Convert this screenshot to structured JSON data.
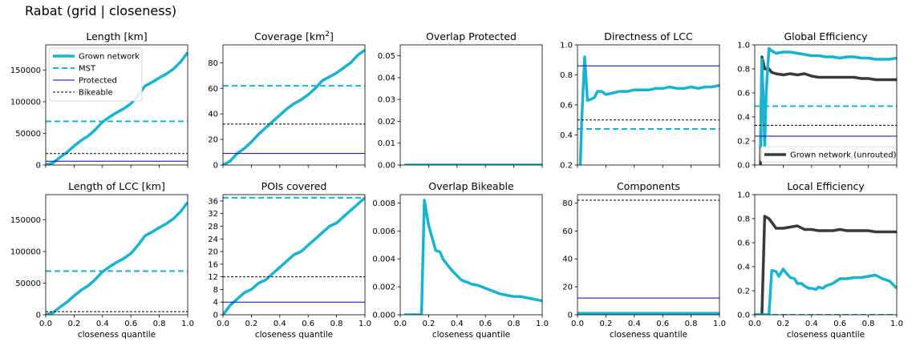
{
  "figure_title": "Rabat (grid | closeness)",
  "colors": {
    "grown": "#17b3cf",
    "mst": "#17b3cf",
    "protected": "#0000cc",
    "bikeable": "#000000",
    "unrouted": "#3a3a3a"
  },
  "chart_data": [
    {
      "type": "line",
      "title": "Length [km]",
      "title_sup": "",
      "xlabel": "",
      "xlim": [
        0,
        1
      ],
      "ylim": [
        0,
        190000
      ],
      "yticks": [
        0,
        50000,
        100000,
        150000
      ],
      "yticklabels": [
        "0",
        "50000",
        "100000",
        "150000"
      ],
      "xticks": [
        0,
        0.2,
        0.4,
        0.6,
        0.8,
        1.0
      ],
      "xticklabels": [],
      "legend": {
        "placement": "upper-left",
        "entries": [
          "Grown network",
          "MST",
          "Protected",
          "Bikeable"
        ]
      },
      "series": [
        {
          "name": "Grown network",
          "style": "grown",
          "x": [
            0,
            0.05,
            0.1,
            0.15,
            0.2,
            0.25,
            0.3,
            0.35,
            0.4,
            0.45,
            0.5,
            0.55,
            0.6,
            0.65,
            0.7,
            0.75,
            0.8,
            0.85,
            0.9,
            0.95,
            1.0
          ],
          "y": [
            0,
            3000,
            12000,
            20000,
            30000,
            39000,
            46000,
            56000,
            68000,
            76000,
            83000,
            89000,
            97000,
            110000,
            125000,
            131000,
            138000,
            144000,
            152000,
            163000,
            178000
          ]
        },
        {
          "name": "MST",
          "style": "mst",
          "hline": 69000
        },
        {
          "name": "Protected",
          "style": "protected",
          "hline": 6000
        },
        {
          "name": "Bikeable",
          "style": "bikeable",
          "hline": 18000
        }
      ]
    },
    {
      "type": "line",
      "title": "Coverage [km",
      "title_sup": "2",
      "title_end": "]",
      "xlabel": "",
      "xlim": [
        0,
        1
      ],
      "ylim": [
        0,
        94
      ],
      "yticks": [
        0,
        20,
        40,
        60,
        80
      ],
      "yticklabels": [
        "0",
        "20",
        "40",
        "60",
        "80"
      ],
      "xticks": [
        0,
        0.2,
        0.4,
        0.6,
        0.8,
        1.0
      ],
      "xticklabels": [],
      "series": [
        {
          "name": "Grown network",
          "style": "grown",
          "x": [
            0,
            0.05,
            0.1,
            0.15,
            0.2,
            0.25,
            0.3,
            0.35,
            0.4,
            0.45,
            0.5,
            0.55,
            0.6,
            0.65,
            0.7,
            0.75,
            0.8,
            0.85,
            0.9,
            0.95,
            1.0
          ],
          "y": [
            0,
            3,
            9,
            13,
            18,
            24,
            29,
            34,
            39,
            44,
            48,
            51,
            55,
            60,
            66,
            69,
            72,
            76,
            80,
            86,
            90
          ]
        },
        {
          "name": "MST",
          "style": "mst",
          "hline": 62
        },
        {
          "name": "Protected",
          "style": "protected",
          "hline": 9
        },
        {
          "name": "Bikeable",
          "style": "bikeable",
          "hline": 32
        }
      ]
    },
    {
      "type": "line",
      "title": "Overlap Protected",
      "xlabel": "",
      "xlim": [
        0,
        1
      ],
      "ylim": [
        0,
        0.055
      ],
      "yticks": [
        0,
        0.01,
        0.02,
        0.03,
        0.04,
        0.05
      ],
      "yticklabels": [
        "0.00",
        "0.01",
        "0.02",
        "0.03",
        "0.04",
        "0.05"
      ],
      "xticks": [
        0,
        0.2,
        0.4,
        0.6,
        0.8,
        1.0
      ],
      "xticklabels": [],
      "series": [
        {
          "name": "Grown network",
          "style": "grown",
          "x": [
            0.03,
            1.0
          ],
          "y": [
            0,
            0
          ]
        }
      ]
    },
    {
      "type": "line",
      "title": "Directness of LCC",
      "xlabel": "",
      "xlim": [
        0,
        1
      ],
      "ylim": [
        0.2,
        1.0
      ],
      "yticks": [
        0.2,
        0.4,
        0.6,
        0.8,
        1.0
      ],
      "yticklabels": [
        "0.2",
        "0.4",
        "0.6",
        "0.8",
        "1.0"
      ],
      "xticks": [
        0,
        0.2,
        0.4,
        0.6,
        0.8,
        1.0
      ],
      "xticklabels": [],
      "series": [
        {
          "name": "Grown network",
          "style": "grown",
          "x": [
            0.02,
            0.03,
            0.05,
            0.07,
            0.1,
            0.12,
            0.14,
            0.17,
            0.2,
            0.25,
            0.3,
            0.35,
            0.4,
            0.45,
            0.5,
            0.55,
            0.6,
            0.65,
            0.7,
            0.75,
            0.8,
            0.85,
            0.9,
            0.95,
            1.0
          ],
          "y": [
            0.2,
            0.5,
            0.92,
            0.63,
            0.64,
            0.65,
            0.69,
            0.69,
            0.67,
            0.68,
            0.69,
            0.69,
            0.7,
            0.7,
            0.7,
            0.71,
            0.71,
            0.72,
            0.71,
            0.71,
            0.72,
            0.71,
            0.72,
            0.72,
            0.73
          ]
        },
        {
          "name": "MST",
          "style": "mst",
          "hline": 0.44
        },
        {
          "name": "Protected",
          "style": "protected",
          "hline": 0.86
        },
        {
          "name": "Bikeable",
          "style": "bikeable",
          "hline": 0.5
        }
      ]
    },
    {
      "type": "line",
      "title": "Global Efficiency",
      "xlabel": "",
      "xlim": [
        0,
        1
      ],
      "ylim": [
        0,
        1.0
      ],
      "yticks": [
        0,
        0.2,
        0.4,
        0.6,
        0.8,
        1.0
      ],
      "yticklabels": [
        "0.0",
        "0.2",
        "0.4",
        "0.6",
        "0.8",
        "1.0"
      ],
      "xticks": [
        0,
        0.2,
        0.4,
        0.6,
        0.8,
        1.0
      ],
      "xticklabels": [],
      "legend": {
        "placement": "lower-right",
        "entries": [
          "Grown network (unrouted)"
        ]
      },
      "series": [
        {
          "name": "Grown network (unrouted)",
          "style": "unrouted",
          "x": [
            0.04,
            0.05,
            0.07,
            0.1,
            0.12,
            0.15,
            0.2,
            0.25,
            0.3,
            0.35,
            0.4,
            0.45,
            0.5,
            0.55,
            0.6,
            0.65,
            0.7,
            0.75,
            0.8,
            0.85,
            0.9,
            0.95,
            1.0
          ],
          "y": [
            0,
            0.9,
            0.8,
            0.8,
            0.77,
            0.76,
            0.75,
            0.76,
            0.75,
            0.76,
            0.74,
            0.73,
            0.73,
            0.73,
            0.73,
            0.73,
            0.73,
            0.72,
            0.72,
            0.71,
            0.71,
            0.71,
            0.71
          ]
        },
        {
          "name": "Grown network",
          "style": "grown",
          "x": [
            0.04,
            0.05,
            0.06,
            0.07,
            0.08,
            0.1,
            0.12,
            0.15,
            0.2,
            0.25,
            0.3,
            0.35,
            0.4,
            0.45,
            0.5,
            0.55,
            0.6,
            0.65,
            0.7,
            0.75,
            0.8,
            0.85,
            0.9,
            0.95,
            1.0
          ],
          "y": [
            0.15,
            0.88,
            0.55,
            0.15,
            0.6,
            0.97,
            0.95,
            0.93,
            0.94,
            0.94,
            0.93,
            0.92,
            0.91,
            0.91,
            0.9,
            0.9,
            0.89,
            0.9,
            0.9,
            0.89,
            0.89,
            0.88,
            0.88,
            0.88,
            0.89
          ]
        },
        {
          "name": "MST",
          "style": "mst",
          "hline": 0.49
        },
        {
          "name": "Protected",
          "style": "protected",
          "hline": 0.24
        },
        {
          "name": "Bikeable",
          "style": "bikeable",
          "hline": 0.33
        }
      ]
    },
    {
      "type": "line",
      "title": "Length of LCC [km]",
      "xlabel": "closeness quantile",
      "xlim": [
        0,
        1
      ],
      "ylim": [
        0,
        190000
      ],
      "yticks": [
        0,
        50000,
        100000,
        150000
      ],
      "yticklabels": [
        "0",
        "50000",
        "100000",
        "150000"
      ],
      "xticks": [
        0,
        0.2,
        0.4,
        0.6,
        0.8,
        1.0
      ],
      "xticklabels": [
        "0.0",
        "0.2",
        "0.4",
        "0.6",
        "0.8",
        "1.0"
      ],
      "series": [
        {
          "name": "Grown network",
          "style": "grown",
          "x": [
            0,
            0.05,
            0.1,
            0.15,
            0.2,
            0.25,
            0.3,
            0.35,
            0.4,
            0.45,
            0.5,
            0.55,
            0.6,
            0.65,
            0.7,
            0.75,
            0.8,
            0.85,
            0.9,
            0.95,
            1.0
          ],
          "y": [
            0,
            3000,
            12000,
            20000,
            30000,
            39000,
            46000,
            56000,
            68000,
            76000,
            83000,
            89000,
            97000,
            110000,
            125000,
            131000,
            138000,
            144000,
            152000,
            163000,
            178000
          ]
        },
        {
          "name": "MST",
          "style": "mst",
          "hline": 69000
        },
        {
          "name": "Bikeable",
          "style": "bikeable",
          "hline": 5000
        }
      ]
    },
    {
      "type": "line",
      "title": "POIs covered",
      "xlabel": "closeness quantile",
      "xlim": [
        0,
        1
      ],
      "ylim": [
        0,
        38
      ],
      "yticks": [
        0,
        4,
        8,
        12,
        16,
        20,
        24,
        28,
        32,
        36
      ],
      "yticklabels": [
        "0",
        "4",
        "8",
        "12",
        "16",
        "20",
        "24",
        "28",
        "32",
        "36"
      ],
      "xticks": [
        0,
        0.2,
        0.4,
        0.6,
        0.8,
        1.0
      ],
      "xticklabels": [
        "0.0",
        "0.2",
        "0.4",
        "0.6",
        "0.8",
        "1.0"
      ],
      "series": [
        {
          "name": "Grown network",
          "style": "grown",
          "x": [
            0,
            0.05,
            0.1,
            0.15,
            0.2,
            0.25,
            0.3,
            0.35,
            0.4,
            0.45,
            0.5,
            0.55,
            0.6,
            0.65,
            0.7,
            0.75,
            0.8,
            0.85,
            0.9,
            0.95,
            1.0
          ],
          "y": [
            0,
            3,
            5,
            7,
            8,
            10,
            11,
            13,
            15,
            17,
            19,
            20,
            22,
            24,
            26,
            28,
            29,
            31,
            33,
            35,
            37
          ]
        },
        {
          "name": "MST",
          "style": "mst",
          "hline": 37
        },
        {
          "name": "Protected",
          "style": "protected",
          "hline": 4
        },
        {
          "name": "Bikeable",
          "style": "bikeable",
          "hline": 12
        }
      ]
    },
    {
      "type": "line",
      "title": "Overlap Bikeable",
      "xlabel": "closeness quantile",
      "xlim": [
        0,
        1
      ],
      "ylim": [
        0,
        0.0086
      ],
      "yticks": [
        0,
        0.002,
        0.004,
        0.006,
        0.008
      ],
      "yticklabels": [
        "0.000",
        "0.002",
        "0.004",
        "0.006",
        "0.008"
      ],
      "xticks": [
        0,
        0.2,
        0.4,
        0.6,
        0.8,
        1.0
      ],
      "xticklabels": [
        "0.0",
        "0.2",
        "0.4",
        "0.6",
        "0.8",
        "1.0"
      ],
      "series": [
        {
          "name": "Grown network",
          "style": "grown",
          "x": [
            0.03,
            0.15,
            0.17,
            0.2,
            0.25,
            0.28,
            0.3,
            0.33,
            0.37,
            0.4,
            0.43,
            0.45,
            0.48,
            0.5,
            0.55,
            0.6,
            0.65,
            0.7,
            0.75,
            0.8,
            0.85,
            0.9,
            0.95,
            1.0
          ],
          "y": [
            0,
            0,
            0.0082,
            0.0064,
            0.0046,
            0.0045,
            0.004,
            0.0036,
            0.0031,
            0.0028,
            0.0025,
            0.0024,
            0.0023,
            0.0022,
            0.0021,
            0.0019,
            0.0017,
            0.0015,
            0.0014,
            0.0013,
            0.0013,
            0.0012,
            0.0011,
            0.001
          ]
        }
      ]
    },
    {
      "type": "line",
      "title": "Components",
      "xlabel": "closeness quantile",
      "xlim": [
        0,
        1
      ],
      "ylim": [
        0,
        86
      ],
      "yticks": [
        0,
        20,
        40,
        60,
        80
      ],
      "yticklabels": [
        "0",
        "20",
        "40",
        "60",
        "80"
      ],
      "xticks": [
        0,
        0.2,
        0.4,
        0.6,
        0.8,
        1.0
      ],
      "xticklabels": [
        "0.0",
        "0.2",
        "0.4",
        "0.6",
        "0.8",
        "1.0"
      ],
      "series": [
        {
          "name": "Grown network",
          "style": "grown",
          "x": [
            0,
            1.0
          ],
          "y": [
            1,
            1
          ]
        },
        {
          "name": "Protected",
          "style": "protected",
          "hline": 12
        },
        {
          "name": "Bikeable",
          "style": "bikeable",
          "hline": 82
        }
      ]
    },
    {
      "type": "line",
      "title": "Local Efficiency",
      "xlabel": "closeness quantile",
      "xlim": [
        0,
        1
      ],
      "ylim": [
        0,
        1.0
      ],
      "yticks": [
        0,
        0.2,
        0.4,
        0.6,
        0.8,
        1.0
      ],
      "yticklabels": [
        "0.0",
        "0.2",
        "0.4",
        "0.6",
        "0.8",
        "1.0"
      ],
      "xticks": [
        0,
        0.2,
        0.4,
        0.6,
        0.8,
        1.0
      ],
      "xticklabels": [
        "0.0",
        "0.2",
        "0.4",
        "0.6",
        "0.8",
        "1.0"
      ],
      "series": [
        {
          "name": "Grown network (unrouted)",
          "style": "unrouted",
          "x": [
            0,
            0.05,
            0.07,
            0.1,
            0.12,
            0.15,
            0.2,
            0.25,
            0.3,
            0.35,
            0.4,
            0.45,
            0.5,
            0.55,
            0.6,
            0.65,
            0.7,
            0.75,
            0.8,
            0.85,
            0.9,
            0.95,
            1.0
          ],
          "y": [
            0,
            0,
            0.82,
            0.8,
            0.77,
            0.72,
            0.72,
            0.73,
            0.74,
            0.71,
            0.71,
            0.7,
            0.7,
            0.7,
            0.71,
            0.7,
            0.7,
            0.7,
            0.7,
            0.69,
            0.69,
            0.69,
            0.69
          ]
        },
        {
          "name": "Grown network",
          "style": "grown",
          "x": [
            0,
            0.1,
            0.12,
            0.15,
            0.17,
            0.2,
            0.22,
            0.25,
            0.28,
            0.3,
            0.33,
            0.35,
            0.38,
            0.4,
            0.43,
            0.45,
            0.48,
            0.5,
            0.55,
            0.6,
            0.65,
            0.7,
            0.75,
            0.8,
            0.85,
            0.9,
            0.95,
            1.0
          ],
          "y": [
            0,
            0,
            0.37,
            0.36,
            0.32,
            0.38,
            0.35,
            0.31,
            0.3,
            0.26,
            0.26,
            0.24,
            0.22,
            0.22,
            0.21,
            0.23,
            0.22,
            0.24,
            0.26,
            0.3,
            0.3,
            0.31,
            0.31,
            0.32,
            0.33,
            0.3,
            0.28,
            0.22
          ]
        },
        {
          "name": "MST",
          "style": "mst",
          "hline": 0
        }
      ]
    }
  ]
}
